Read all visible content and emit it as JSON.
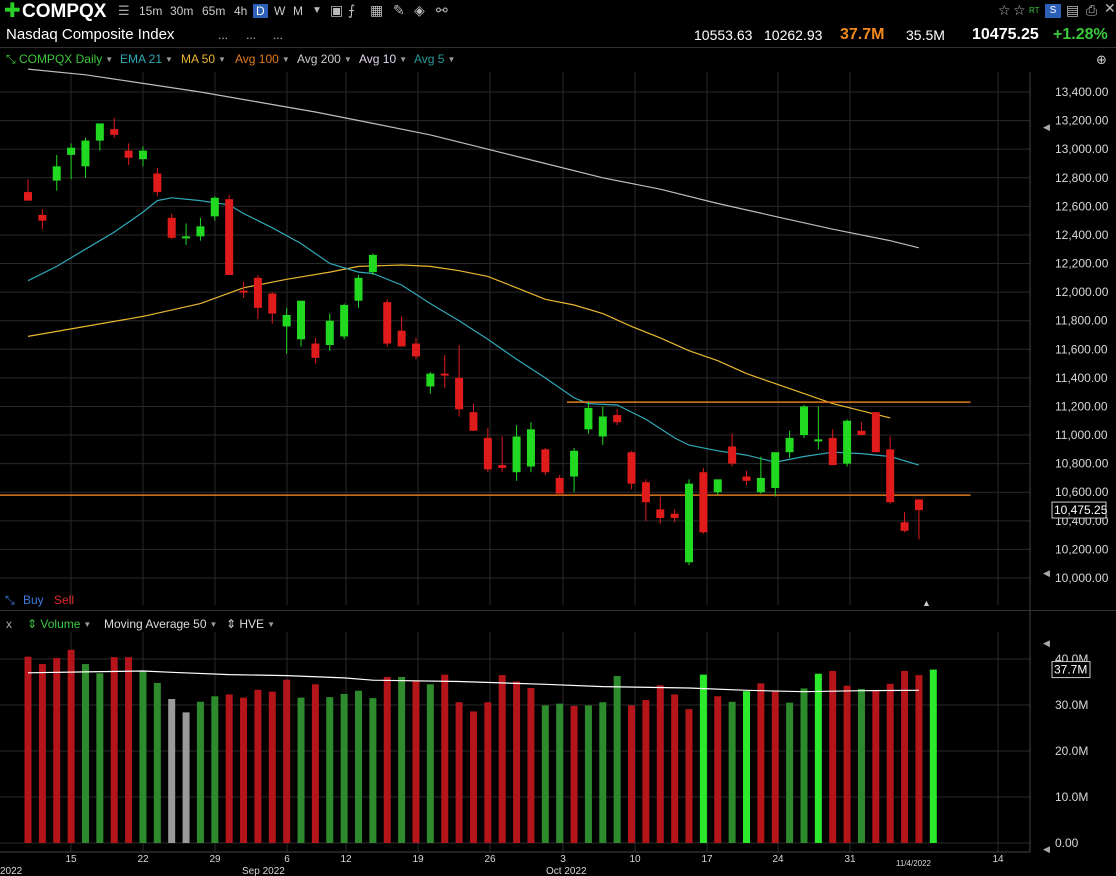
{
  "header": {
    "symbol": "COMPQX",
    "timeframes": [
      "15m",
      "30m",
      "65m",
      "4h",
      "D",
      "W",
      "M"
    ],
    "active_timeframe": "D",
    "name": "Nasdaq Composite Index",
    "dots1": "...",
    "dots2": "...",
    "dots3": "...",
    "high": "10553.63",
    "low": "10262.93",
    "volume": "37.7M",
    "avg_volume": "35.5M",
    "last": "10475.25",
    "change": "+1.28%",
    "right_labels": {
      "rt": "RT"
    }
  },
  "legend": {
    "items": [
      {
        "label": "COMPQX Daily",
        "color": "#3cc83c"
      },
      {
        "label": "EMA 21",
        "color": "#31a9b8"
      },
      {
        "label": "MA 50",
        "color": "#e8b630"
      },
      {
        "label": "Avg 100",
        "color": "#e07b1e"
      },
      {
        "label": "Avg 200",
        "color": "#cccccc"
      },
      {
        "label": "Avg 10",
        "color": "#e0d6f0"
      },
      {
        "label": "Avg 5",
        "color": "#2a9a9a"
      }
    ],
    "buy": "Buy",
    "sell": "Sell",
    "volume_panel": {
      "close": "x",
      "volume": "Volume",
      "ma": "Moving Average 50",
      "hve": "HVE"
    }
  },
  "price_axis": {
    "ticks": [
      "13,400.00",
      "13,200.00",
      "13,000.00",
      "12,800.00",
      "12,600.00",
      "12,400.00",
      "12,200.00",
      "12,000.00",
      "11,800.00",
      "11,600.00",
      "11,400.00",
      "11,200.00",
      "11,000.00",
      "10,800.00",
      "10,600.00",
      "10,400.00",
      "10,200.00",
      "10,000.00"
    ],
    "last_label": "10,475.25"
  },
  "volume_axis": {
    "ticks": [
      "40.0M",
      "30.0M",
      "20.0M",
      "10.0M",
      "0.00"
    ],
    "last_label": "37.7M"
  },
  "date_axis": {
    "day_labels": [
      "15",
      "22",
      "29",
      "6",
      "12",
      "19",
      "26",
      "3",
      "10",
      "17",
      "24",
      "31",
      "14"
    ],
    "year_labels": [
      "2022",
      "Sep 2022",
      "Oct 2022",
      "11/4/2022"
    ]
  },
  "chart_data": {
    "type": "candlestick",
    "title": "COMPQX Daily",
    "ylim": [
      9900,
      13500
    ],
    "candles": [
      {
        "o": 12700,
        "h": 12790,
        "l": 12650,
        "c": 12640
      },
      {
        "o": 12540,
        "h": 12580,
        "l": 12440,
        "c": 12500
      },
      {
        "o": 12780,
        "h": 12960,
        "l": 12710,
        "c": 12880
      },
      {
        "o": 12960,
        "h": 13040,
        "l": 12790,
        "c": 13010
      },
      {
        "o": 12880,
        "h": 13080,
        "l": 12800,
        "c": 13060
      },
      {
        "o": 13060,
        "h": 13180,
        "l": 12990,
        "c": 13180
      },
      {
        "o": 13140,
        "h": 13220,
        "l": 13080,
        "c": 13100
      },
      {
        "o": 12990,
        "h": 13040,
        "l": 12890,
        "c": 12940
      },
      {
        "o": 12930,
        "h": 13020,
        "l": 12880,
        "c": 12990
      },
      {
        "o": 12830,
        "h": 12870,
        "l": 12670,
        "c": 12700
      },
      {
        "o": 12520,
        "h": 12550,
        "l": 12370,
        "c": 12380
      },
      {
        "o": 12390,
        "h": 12480,
        "l": 12330,
        "c": 12390
      },
      {
        "o": 12390,
        "h": 12520,
        "l": 12360,
        "c": 12460
      },
      {
        "o": 12530,
        "h": 12670,
        "l": 12500,
        "c": 12660
      },
      {
        "o": 12650,
        "h": 12680,
        "l": 12120,
        "c": 12120
      },
      {
        "o": 12010,
        "h": 12070,
        "l": 11960,
        "c": 12000
      },
      {
        "o": 12100,
        "h": 12120,
        "l": 11810,
        "c": 11890
      },
      {
        "o": 11990,
        "h": 12000,
        "l": 11780,
        "c": 11850
      },
      {
        "o": 11760,
        "h": 11890,
        "l": 11570,
        "c": 11840
      },
      {
        "o": 11670,
        "h": 11940,
        "l": 11620,
        "c": 11940
      },
      {
        "o": 11640,
        "h": 11680,
        "l": 11500,
        "c": 11540
      },
      {
        "o": 11630,
        "h": 11850,
        "l": 11590,
        "c": 11800
      },
      {
        "o": 11690,
        "h": 11920,
        "l": 11670,
        "c": 11910
      },
      {
        "o": 11940,
        "h": 12120,
        "l": 11890,
        "c": 12100
      },
      {
        "o": 12140,
        "h": 12270,
        "l": 12120,
        "c": 12260
      },
      {
        "o": 11930,
        "h": 11950,
        "l": 11620,
        "c": 11640
      },
      {
        "o": 11730,
        "h": 11830,
        "l": 11620,
        "c": 11620
      },
      {
        "o": 11640,
        "h": 11680,
        "l": 11530,
        "c": 11550
      },
      {
        "o": 11340,
        "h": 11440,
        "l": 11290,
        "c": 11430
      },
      {
        "o": 11430,
        "h": 11560,
        "l": 11330,
        "c": 11420
      },
      {
        "o": 11400,
        "h": 11630,
        "l": 11130,
        "c": 11180
      },
      {
        "o": 11160,
        "h": 11220,
        "l": 11030,
        "c": 11030
      },
      {
        "o": 10980,
        "h": 11050,
        "l": 10740,
        "c": 10760
      },
      {
        "o": 10790,
        "h": 10990,
        "l": 10740,
        "c": 10770
      },
      {
        "o": 10740,
        "h": 11070,
        "l": 10680,
        "c": 10990
      },
      {
        "o": 10780,
        "h": 11090,
        "l": 10740,
        "c": 11040
      },
      {
        "o": 10900,
        "h": 10910,
        "l": 10720,
        "c": 10740
      },
      {
        "o": 10700,
        "h": 10720,
        "l": 10590,
        "c": 10590
      },
      {
        "o": 10710,
        "h": 10910,
        "l": 10600,
        "c": 10890
      },
      {
        "o": 11040,
        "h": 11230,
        "l": 11010,
        "c": 11190
      },
      {
        "o": 10990,
        "h": 11200,
        "l": 10930,
        "c": 11130
      },
      {
        "o": 11140,
        "h": 11180,
        "l": 11070,
        "c": 11090
      },
      {
        "o": 10880,
        "h": 10890,
        "l": 10620,
        "c": 10660
      },
      {
        "o": 10670,
        "h": 10690,
        "l": 10400,
        "c": 10530
      },
      {
        "o": 10480,
        "h": 10570,
        "l": 10380,
        "c": 10420
      },
      {
        "o": 10450,
        "h": 10480,
        "l": 10390,
        "c": 10420
      },
      {
        "o": 10110,
        "h": 10690,
        "l": 10090,
        "c": 10660
      },
      {
        "o": 10740,
        "h": 10770,
        "l": 10310,
        "c": 10320
      },
      {
        "o": 10600,
        "h": 10690,
        "l": 10580,
        "c": 10690
      },
      {
        "o": 10920,
        "h": 11010,
        "l": 10780,
        "c": 10800
      },
      {
        "o": 10710,
        "h": 10750,
        "l": 10650,
        "c": 10680
      },
      {
        "o": 10600,
        "h": 10850,
        "l": 10590,
        "c": 10700
      },
      {
        "o": 10630,
        "h": 10870,
        "l": 10570,
        "c": 10880
      },
      {
        "o": 10880,
        "h": 11030,
        "l": 10840,
        "c": 10980
      },
      {
        "o": 11000,
        "h": 11210,
        "l": 10980,
        "c": 11200
      },
      {
        "o": 10970,
        "h": 11200,
        "l": 10900,
        "c": 10970
      },
      {
        "o": 10980,
        "h": 11040,
        "l": 10790,
        "c": 10790
      },
      {
        "o": 10800,
        "h": 11110,
        "l": 10780,
        "c": 11100
      },
      {
        "o": 11030,
        "h": 11090,
        "l": 11000,
        "c": 11000
      },
      {
        "o": 11160,
        "h": 11160,
        "l": 10880,
        "c": 10880
      },
      {
        "o": 10900,
        "h": 10990,
        "l": 10520,
        "c": 10530
      },
      {
        "o": 10390,
        "h": 10460,
        "l": 10320,
        "c": 10330
      },
      {
        "o": 10550,
        "h": 10550,
        "l": 10270,
        "c": 10475
      }
    ],
    "volume": [
      {
        "v": 40.5,
        "c": "red"
      },
      {
        "v": 38.9,
        "c": "red"
      },
      {
        "v": 40.2,
        "c": "red"
      },
      {
        "v": 42.0,
        "c": "red"
      },
      {
        "v": 38.9,
        "c": "green"
      },
      {
        "v": 36.9,
        "c": "green"
      },
      {
        "v": 40.4,
        "c": "red"
      },
      {
        "v": 40.4,
        "c": "red"
      },
      {
        "v": 37.3,
        "c": "green"
      },
      {
        "v": 34.8,
        "c": "green"
      },
      {
        "v": 31.3,
        "c": "gray"
      },
      {
        "v": 28.4,
        "c": "gray"
      },
      {
        "v": 30.7,
        "c": "green"
      },
      {
        "v": 31.9,
        "c": "green"
      },
      {
        "v": 32.3,
        "c": "red"
      },
      {
        "v": 31.6,
        "c": "red"
      },
      {
        "v": 33.3,
        "c": "red"
      },
      {
        "v": 32.9,
        "c": "red"
      },
      {
        "v": 35.5,
        "c": "red"
      },
      {
        "v": 31.6,
        "c": "green"
      },
      {
        "v": 34.5,
        "c": "red"
      },
      {
        "v": 31.7,
        "c": "green"
      },
      {
        "v": 32.4,
        "c": "green"
      },
      {
        "v": 33.1,
        "c": "green"
      },
      {
        "v": 31.5,
        "c": "green"
      },
      {
        "v": 36.1,
        "c": "red"
      },
      {
        "v": 36.1,
        "c": "green"
      },
      {
        "v": 35.3,
        "c": "red"
      },
      {
        "v": 34.5,
        "c": "green"
      },
      {
        "v": 36.6,
        "c": "red"
      },
      {
        "v": 30.6,
        "c": "red"
      },
      {
        "v": 28.6,
        "c": "red"
      },
      {
        "v": 30.6,
        "c": "red"
      },
      {
        "v": 36.5,
        "c": "red"
      },
      {
        "v": 35.1,
        "c": "red"
      },
      {
        "v": 33.7,
        "c": "red"
      },
      {
        "v": 29.9,
        "c": "green"
      },
      {
        "v": 30.3,
        "c": "green"
      },
      {
        "v": 29.8,
        "c": "red"
      },
      {
        "v": 29.9,
        "c": "green"
      },
      {
        "v": 30.6,
        "c": "green"
      },
      {
        "v": 36.3,
        "c": "green"
      },
      {
        "v": 29.9,
        "c": "red"
      },
      {
        "v": 31.1,
        "c": "red"
      },
      {
        "v": 34.3,
        "c": "red"
      },
      {
        "v": 32.3,
        "c": "red"
      },
      {
        "v": 29.1,
        "c": "red"
      },
      {
        "v": 36.6,
        "c": "brightgreen"
      },
      {
        "v": 31.9,
        "c": "red"
      },
      {
        "v": 30.7,
        "c": "green"
      },
      {
        "v": 33.0,
        "c": "brightgreen"
      },
      {
        "v": 34.7,
        "c": "red"
      },
      {
        "v": 33.0,
        "c": "red"
      },
      {
        "v": 30.5,
        "c": "green"
      },
      {
        "v": 33.6,
        "c": "green"
      },
      {
        "v": 36.8,
        "c": "brightgreen"
      },
      {
        "v": 37.4,
        "c": "red"
      },
      {
        "v": 34.2,
        "c": "red"
      },
      {
        "v": 33.5,
        "c": "green"
      },
      {
        "v": 33.1,
        "c": "red"
      },
      {
        "v": 34.6,
        "c": "red"
      },
      {
        "v": 37.4,
        "c": "red"
      },
      {
        "v": 36.5,
        "c": "red"
      },
      {
        "v": 37.7,
        "c": "brightgreen"
      }
    ],
    "ema21": [
      [
        0,
        12080
      ],
      [
        2,
        12180
      ],
      [
        4,
        12300
      ],
      [
        6,
        12420
      ],
      [
        8,
        12560
      ],
      [
        9,
        12640
      ],
      [
        10,
        12660
      ],
      [
        12,
        12640
      ],
      [
        14,
        12610
      ],
      [
        15,
        12550
      ],
      [
        17,
        12450
      ],
      [
        19,
        12340
      ],
      [
        21,
        12200
      ],
      [
        23,
        12140
      ],
      [
        24,
        12130
      ],
      [
        26,
        12050
      ],
      [
        28,
        11920
      ],
      [
        30,
        11800
      ],
      [
        32,
        11670
      ],
      [
        34,
        11530
      ],
      [
        36,
        11400
      ],
      [
        38,
        11260
      ],
      [
        39,
        11220
      ],
      [
        41,
        11210
      ],
      [
        43,
        11110
      ],
      [
        45,
        10980
      ],
      [
        46,
        10930
      ],
      [
        48,
        10890
      ],
      [
        50,
        10860
      ],
      [
        52,
        10810
      ],
      [
        54,
        10850
      ],
      [
        56,
        10880
      ],
      [
        58,
        10870
      ],
      [
        60,
        10850
      ],
      [
        62,
        10790
      ]
    ],
    "ma50": [
      [
        0,
        11690
      ],
      [
        4,
        11760
      ],
      [
        8,
        11830
      ],
      [
        12,
        11920
      ],
      [
        15,
        12030
      ],
      [
        18,
        12090
      ],
      [
        21,
        12140
      ],
      [
        23,
        12180
      ],
      [
        26,
        12190
      ],
      [
        28,
        12180
      ],
      [
        30,
        12150
      ],
      [
        32,
        12110
      ],
      [
        34,
        12030
      ],
      [
        36,
        11950
      ],
      [
        38,
        11910
      ],
      [
        40,
        11850
      ],
      [
        42,
        11760
      ],
      [
        44,
        11680
      ],
      [
        46,
        11590
      ],
      [
        48,
        11520
      ],
      [
        50,
        11430
      ],
      [
        52,
        11360
      ],
      [
        54,
        11290
      ],
      [
        56,
        11220
      ],
      [
        58,
        11170
      ],
      [
        60,
        11120
      ]
    ],
    "ma200": [
      [
        0,
        13560
      ],
      [
        4,
        13520
      ],
      [
        8,
        13460
      ],
      [
        12,
        13400
      ],
      [
        16,
        13330
      ],
      [
        20,
        13260
      ],
      [
        24,
        13180
      ],
      [
        28,
        13100
      ],
      [
        32,
        13000
      ],
      [
        36,
        12900
      ],
      [
        40,
        12800
      ],
      [
        44,
        12720
      ],
      [
        48,
        12620
      ],
      [
        52,
        12530
      ],
      [
        56,
        12440
      ],
      [
        60,
        12360
      ],
      [
        62,
        12310
      ]
    ],
    "volume_ma": [
      [
        0,
        37.0
      ],
      [
        4,
        37.2
      ],
      [
        8,
        37.4
      ],
      [
        10,
        37.1
      ],
      [
        14,
        36.6
      ],
      [
        18,
        36.4
      ],
      [
        22,
        35.9
      ],
      [
        24,
        35.4
      ],
      [
        30,
        35.1
      ],
      [
        36,
        34.5
      ],
      [
        40,
        34.0
      ],
      [
        46,
        33.7
      ],
      [
        50,
        33.2
      ],
      [
        54,
        32.9
      ],
      [
        58,
        33.1
      ],
      [
        62,
        33.2
      ]
    ],
    "hlines": [
      {
        "value": 10580,
        "color": "#e07b1e",
        "from": 0,
        "to": 63.5
      },
      {
        "value": 11230,
        "color": "#e07b1e",
        "from": 37.5,
        "to": 63.5
      }
    ]
  }
}
